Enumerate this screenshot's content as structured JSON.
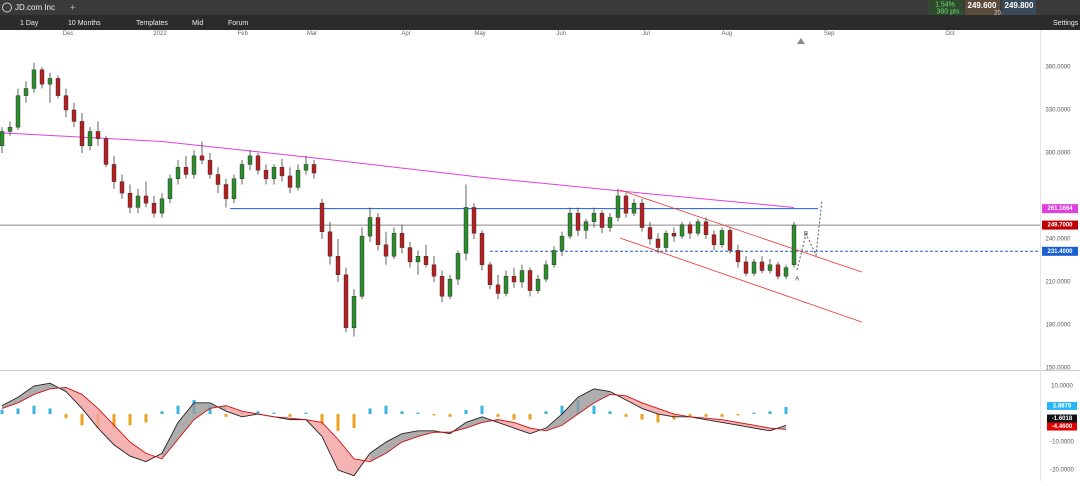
{
  "toolbar": {
    "symbol": "JD.com Inc",
    "add": "+",
    "change_pct": "1.54%",
    "change_pts": "380 pts",
    "bid": "249.600",
    "spread": "20.0",
    "ask": "249.800"
  },
  "menu": {
    "interval": "1 Day",
    "range": "10 Months",
    "templates": "Templates",
    "mid": "Mid",
    "forum": "Forum",
    "settings": "Settings"
  },
  "chart_data": {
    "type": "candlestick",
    "xlim": [
      -0.25,
      129.75
    ],
    "xticks": [
      {
        "value": 8.25,
        "label": "Dec"
      },
      {
        "value": 19.75,
        "label": "2022"
      },
      {
        "value": 30.1,
        "label": "Feb"
      },
      {
        "value": 38.75,
        "label": "Mar"
      },
      {
        "value": 50.5,
        "label": "Apr"
      },
      {
        "value": 59.75,
        "label": "May"
      },
      {
        "value": 69.9,
        "label": "Jun"
      },
      {
        "value": 80.5,
        "label": "Jul"
      },
      {
        "value": 90.6,
        "label": "Aug"
      },
      {
        "value": 103.4,
        "label": "Sep"
      },
      {
        "value": 118.5,
        "label": "Oct"
      }
    ],
    "ylim": [
      148.6,
      380.9
    ],
    "yticks": [
      {
        "value": 360,
        "label": "360.0000"
      },
      {
        "value": 330,
        "label": "330.0000"
      },
      {
        "value": 300,
        "label": "300.0000"
      },
      {
        "value": 240,
        "label": "240.0000"
      },
      {
        "value": 210,
        "label": "210.0000"
      },
      {
        "value": 180,
        "label": "180.0000"
      },
      {
        "value": 150,
        "label": "150.0000"
      }
    ],
    "up_color": "#2e8b2e",
    "down_color": "#b22222",
    "ohlc": [
      [
        305,
        318,
        300,
        315
      ],
      [
        315,
        322,
        312,
        318
      ],
      [
        318,
        345,
        316,
        340
      ],
      [
        340,
        350,
        335,
        345
      ],
      [
        345,
        363,
        342,
        358
      ],
      [
        358,
        360,
        345,
        348
      ],
      [
        348,
        356,
        335,
        352
      ],
      [
        352,
        354,
        338,
        340
      ],
      [
        340,
        345,
        325,
        330
      ],
      [
        330,
        335,
        318,
        322
      ],
      [
        322,
        328,
        300,
        305
      ],
      [
        305,
        318,
        302,
        315
      ],
      [
        315,
        322,
        305,
        310
      ],
      [
        310,
        312,
        290,
        292
      ],
      [
        292,
        298,
        275,
        280
      ],
      [
        280,
        285,
        268,
        272
      ],
      [
        272,
        278,
        258,
        262
      ],
      [
        262,
        275,
        258,
        270
      ],
      [
        270,
        280,
        262,
        265
      ],
      [
        265,
        270,
        255,
        258
      ],
      [
        258,
        272,
        255,
        268
      ],
      [
        268,
        285,
        265,
        282
      ],
      [
        282,
        295,
        278,
        290
      ],
      [
        290,
        298,
        282,
        285
      ],
      [
        285,
        302,
        282,
        298
      ],
      [
        298,
        308,
        292,
        295
      ],
      [
        295,
        300,
        282,
        285
      ],
      [
        285,
        290,
        272,
        278
      ],
      [
        278,
        282,
        262,
        268
      ],
      [
        268,
        285,
        265,
        282
      ],
      [
        282,
        295,
        278,
        292
      ],
      [
        292,
        302,
        288,
        298
      ],
      [
        298,
        300,
        285,
        288
      ],
      [
        288,
        292,
        278,
        282
      ],
      [
        282,
        292,
        278,
        290
      ],
      [
        290,
        296,
        280,
        284
      ],
      [
        284,
        290,
        272,
        276
      ],
      [
        276,
        292,
        274,
        288
      ],
      [
        288,
        298,
        285,
        292
      ],
      [
        292,
        295,
        282,
        286
      ],
      [
        265,
        268,
        240,
        245
      ],
      [
        245,
        252,
        222,
        228
      ],
      [
        228,
        240,
        210,
        215
      ],
      [
        215,
        220,
        175,
        178
      ],
      [
        178,
        205,
        172,
        200
      ],
      [
        200,
        248,
        198,
        242
      ],
      [
        242,
        262,
        238,
        255
      ],
      [
        255,
        258,
        232,
        236
      ],
      [
        236,
        245,
        222,
        228
      ],
      [
        228,
        248,
        226,
        244
      ],
      [
        244,
        250,
        230,
        234
      ],
      [
        234,
        238,
        220,
        224
      ],
      [
        224,
        232,
        215,
        228
      ],
      [
        228,
        236,
        220,
        222
      ],
      [
        222,
        228,
        210,
        214
      ],
      [
        214,
        218,
        196,
        200
      ],
      [
        200,
        215,
        198,
        212
      ],
      [
        212,
        232,
        208,
        230
      ],
      [
        230,
        278,
        225,
        262
      ],
      [
        262,
        265,
        240,
        244
      ],
      [
        244,
        246,
        218,
        222
      ],
      [
        222,
        224,
        205,
        208
      ],
      [
        208,
        215,
        198,
        202
      ],
      [
        202,
        218,
        200,
        214
      ],
      [
        214,
        220,
        206,
        210
      ],
      [
        210,
        222,
        206,
        218
      ],
      [
        218,
        220,
        200,
        204
      ],
      [
        204,
        215,
        202,
        212
      ],
      [
        212,
        225,
        210,
        222
      ],
      [
        222,
        235,
        220,
        232
      ],
      [
        232,
        245,
        228,
        242
      ],
      [
        242,
        262,
        240,
        258
      ],
      [
        258,
        262,
        242,
        246
      ],
      [
        246,
        254,
        240,
        252
      ],
      [
        252,
        262,
        248,
        258
      ],
      [
        258,
        260,
        244,
        248
      ],
      [
        248,
        258,
        245,
        255
      ],
      [
        255,
        275,
        252,
        270
      ],
      [
        270,
        272,
        255,
        258
      ],
      [
        258,
        268,
        256,
        265
      ],
      [
        265,
        268,
        245,
        248
      ],
      [
        248,
        252,
        236,
        240
      ],
      [
        240,
        244,
        230,
        234
      ],
      [
        234,
        246,
        232,
        244
      ],
      [
        244,
        248,
        238,
        242
      ],
      [
        242,
        252,
        240,
        250
      ],
      [
        250,
        252,
        240,
        244
      ],
      [
        244,
        254,
        242,
        252
      ],
      [
        252,
        255,
        240,
        243
      ],
      [
        243,
        246,
        232,
        236
      ],
      [
        236,
        248,
        234,
        246
      ],
      [
        246,
        248,
        230,
        232
      ],
      [
        232,
        236,
        220,
        224
      ],
      [
        224,
        228,
        214,
        216
      ],
      [
        216,
        226,
        214,
        224
      ],
      [
        224,
        228,
        216,
        218
      ],
      [
        218,
        226,
        216,
        222
      ],
      [
        222,
        224,
        212,
        214
      ],
      [
        214,
        222,
        212,
        220
      ],
      [
        222,
        252,
        220,
        249.7
      ]
    ],
    "ma": {
      "color": "#e040e0",
      "x": [
        0,
        20,
        40,
        60,
        80,
        99
      ],
      "values": [
        314,
        308,
        296,
        283,
        272,
        262
      ]
    },
    "levels": [
      {
        "value": 261.1664,
        "label": "261.1664",
        "from": 28.5,
        "to": 102,
        "color": "#1a5fd0",
        "dash": false,
        "tag_color": "#e040e0"
      },
      {
        "value": 249.7,
        "label": "249.7000",
        "from": -0.25,
        "to": 129.75,
        "color": "#888888",
        "dash": false,
        "tag_color": "#c00000"
      },
      {
        "value": 231.4,
        "label": "231.4000",
        "from": 61,
        "to": 129.75,
        "color": "#1a5fd0",
        "dash": true,
        "tag_color": "#1a5fd0"
      }
    ],
    "channel": {
      "color": "#ee3333",
      "lines": [
        [
          [
            77.25,
            274.2
          ],
          [
            107.5,
            216.9
          ]
        ],
        [
          [
            77.25,
            240.7
          ],
          [
            107.5,
            182
          ]
        ]
      ]
    },
    "annotations": [
      {
        "text": "A",
        "x": 99.4,
        "y": 212
      },
      {
        "text": "B",
        "x": 100.5,
        "y": 243.5
      }
    ],
    "indicator": {
      "ylim": [
        -23.9,
        15
      ],
      "yticks": [
        {
          "value": 10,
          "label": "10.0000"
        },
        {
          "value": -10,
          "label": "-10.0000"
        },
        {
          "value": -20,
          "label": "-20.0000"
        }
      ],
      "x": [
        0,
        2,
        4,
        6,
        8,
        10,
        12,
        14,
        16,
        18,
        20,
        22,
        24,
        26,
        28,
        30,
        32,
        34,
        36,
        38,
        40,
        42,
        44,
        46,
        48,
        50,
        52,
        54,
        56,
        58,
        60,
        62,
        64,
        66,
        68,
        70,
        72,
        74,
        76,
        78,
        80,
        82,
        84,
        86,
        88,
        90,
        92,
        94,
        96,
        98
      ],
      "macd": [
        3,
        6,
        10,
        11,
        8,
        2,
        -5,
        -11,
        -15,
        -17,
        -14,
        -3,
        4,
        4,
        1,
        -1,
        0,
        -1,
        -2,
        -2,
        -8,
        -20,
        -22,
        -14,
        -10,
        -7,
        -6,
        -6,
        -7,
        -3,
        -1,
        -3,
        -5,
        -7,
        -5,
        0,
        6,
        9,
        8,
        5,
        2,
        0,
        -1,
        -1,
        -2,
        -3,
        -4,
        -5,
        -6,
        -4
      ],
      "signal": [
        2,
        4,
        7,
        9,
        9.5,
        7,
        2,
        -4,
        -10,
        -14,
        -16,
        -9,
        -2,
        2,
        3,
        1,
        0,
        -1,
        -1.5,
        -2,
        -3,
        -9,
        -16,
        -17,
        -14,
        -10,
        -8,
        -6.5,
        -6.5,
        -5,
        -3,
        -2,
        -3,
        -5,
        -6,
        -4,
        0,
        4,
        7,
        6.5,
        4,
        2,
        0,
        -1,
        -1.5,
        -2,
        -3,
        -4,
        -5,
        -5.5
      ],
      "histogram": [
        1.5,
        2,
        3,
        2,
        -1.5,
        -4,
        -5,
        -5,
        -4,
        -3,
        1,
        3,
        5,
        3,
        -1,
        0.5,
        1,
        0.5,
        -1,
        0.5,
        -4,
        -6,
        -5,
        2,
        3,
        1,
        0.5,
        -0.5,
        -1,
        1.5,
        3,
        -1,
        -2,
        -2,
        1,
        3,
        5,
        3,
        1,
        -1,
        -2,
        -3,
        -2,
        -1,
        -1,
        -1,
        -0.5,
        0.5,
        1,
        2.5
      ],
      "macd_color": "#222222",
      "signal_color": "#d01010",
      "pos_color": "#3ab4e8",
      "neg_color": "#f0a020",
      "tags": [
        {
          "value": 2.8879,
          "label": "2.8879",
          "color": "#29b6f6"
        },
        {
          "value": -1.6018,
          "label": "-1.6018",
          "color": "#111111"
        },
        {
          "value": -4.46,
          "label": "-4.4600",
          "color": "#e00000"
        }
      ]
    }
  }
}
